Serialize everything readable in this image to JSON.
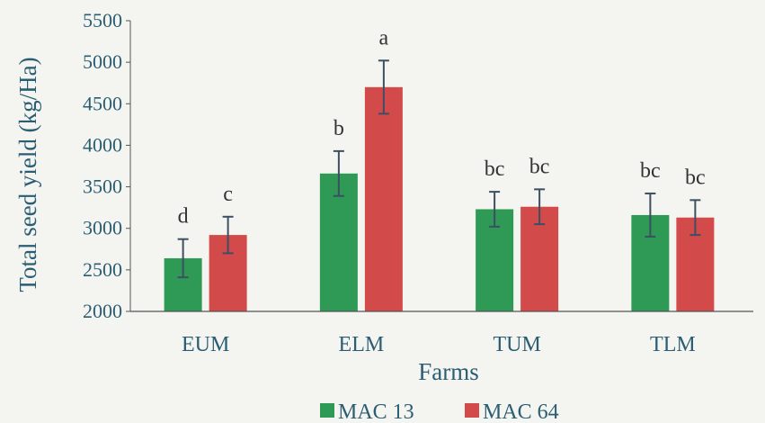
{
  "chart_data": {
    "type": "bar",
    "title": "",
    "xlabel": "Farms",
    "ylabel": "Total seed yield (kg/Ha)",
    "ylim": [
      2000,
      5500
    ],
    "yticks": [
      2000,
      2500,
      3000,
      3500,
      4000,
      4500,
      5000,
      5500
    ],
    "grid": false,
    "legend_position": "bottom",
    "categories": [
      "EUM",
      "ELM",
      "TUM",
      "TLM"
    ],
    "series": [
      {
        "name": "MAC 13",
        "color": "#2e9a55",
        "values": [
          2640,
          3660,
          3230,
          3160
        ],
        "errors": [
          230,
          270,
          210,
          260
        ],
        "labels": [
          "d",
          "b",
          "bc",
          "bc"
        ]
      },
      {
        "name": "MAC 64",
        "color": "#d24a4a",
        "values": [
          2920,
          4700,
          3260,
          3130
        ],
        "errors": [
          220,
          320,
          210,
          210
        ],
        "labels": [
          "c",
          "a",
          "bc",
          "bc"
        ]
      }
    ]
  }
}
